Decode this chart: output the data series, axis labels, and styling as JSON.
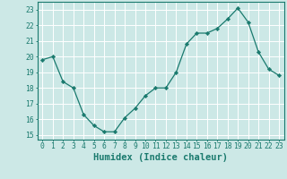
{
  "x": [
    0,
    1,
    2,
    3,
    4,
    5,
    6,
    7,
    8,
    9,
    10,
    11,
    12,
    13,
    14,
    15,
    16,
    17,
    18,
    19,
    20,
    21,
    22,
    23
  ],
  "y": [
    19.8,
    20.0,
    18.4,
    18.0,
    16.3,
    15.6,
    15.2,
    15.2,
    16.1,
    16.7,
    17.5,
    18.0,
    18.0,
    19.0,
    20.8,
    21.5,
    21.5,
    21.8,
    22.4,
    23.1,
    22.2,
    20.3,
    19.2,
    18.8
  ],
  "line_color": "#1a7a6e",
  "marker": "D",
  "marker_size": 2.2,
  "bg_color": "#cce8e6",
  "grid_color": "#ffffff",
  "xlabel": "Humidex (Indice chaleur)",
  "ylim": [
    14.7,
    23.5
  ],
  "xlim": [
    -0.5,
    23.5
  ],
  "yticks": [
    15,
    16,
    17,
    18,
    19,
    20,
    21,
    22,
    23
  ],
  "xticks": [
    0,
    1,
    2,
    3,
    4,
    5,
    6,
    7,
    8,
    9,
    10,
    11,
    12,
    13,
    14,
    15,
    16,
    17,
    18,
    19,
    20,
    21,
    22,
    23
  ],
  "tick_label_fontsize": 5.8,
  "xlabel_fontsize": 7.5,
  "tick_color": "#1a7a6e",
  "axis_color": "#1a7a6e"
}
